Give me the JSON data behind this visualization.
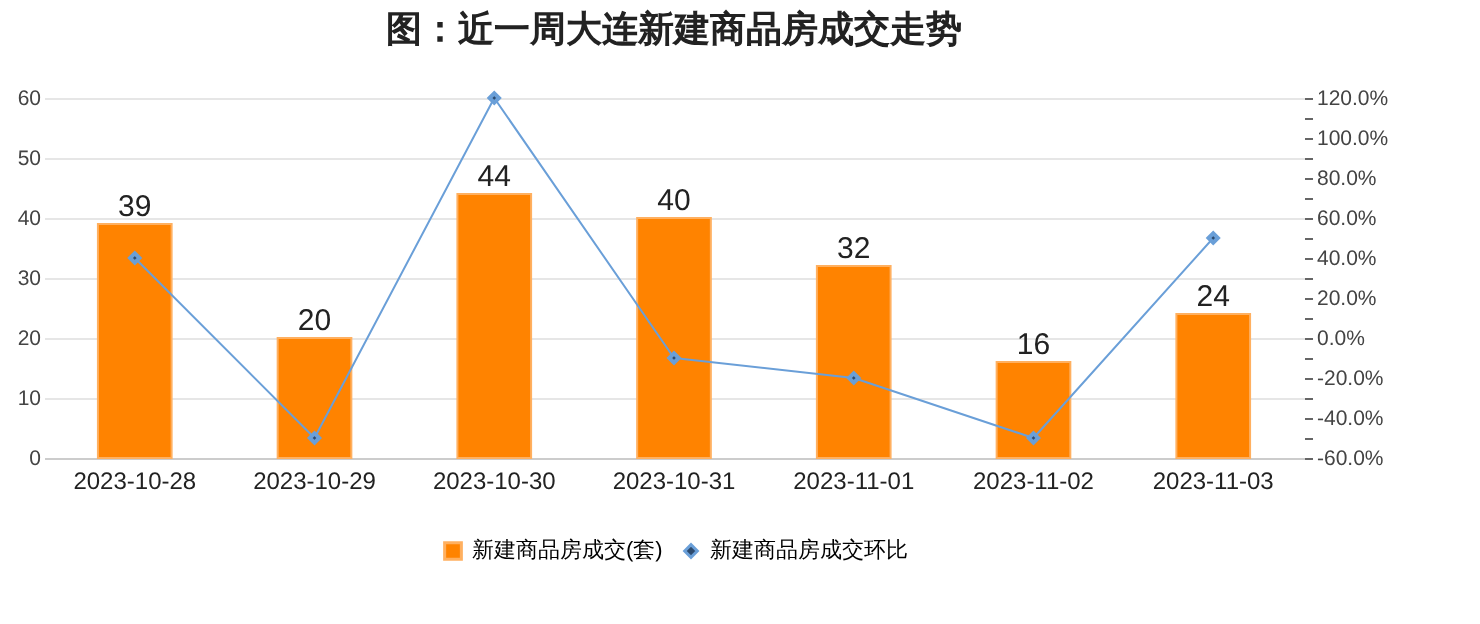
{
  "chart_data": {
    "type": "bar",
    "title": "图：近一周大连新建商品房成交走势",
    "categories": [
      "2023-10-28",
      "2023-10-29",
      "2023-10-30",
      "2023-10-31",
      "2023-11-01",
      "2023-11-02",
      "2023-11-03"
    ],
    "series": [
      {
        "name": "新建商品房成交(套)",
        "color": "#ff8300",
        "values": [
          39,
          20,
          44,
          40,
          32,
          16,
          24
        ],
        "value_labels": [
          "39",
          "20",
          "44",
          "40",
          "32",
          "16",
          "24"
        ]
      },
      {
        "name": "新建商品房成交环比",
        "type": "line",
        "axis": "y2",
        "color": "#6a9fd8",
        "values": [
          40,
          -50,
          120,
          -10,
          -20,
          -50,
          50
        ]
      }
    ],
    "ylim": [
      0,
      60
    ],
    "yticks": [
      0,
      10,
      20,
      30,
      40,
      50,
      60
    ],
    "y2lim": [
      -60,
      120
    ],
    "y2ticks": [
      {
        "value": -60,
        "label": "-60.0%"
      },
      {
        "value": -50,
        "label": null
      },
      {
        "value": -40,
        "label": "-40.0%"
      },
      {
        "value": -30,
        "label": null
      },
      {
        "value": -20,
        "label": "-20.0%"
      },
      {
        "value": -10,
        "label": null
      },
      {
        "value": 0,
        "label": "0.0%"
      },
      {
        "value": 10,
        "label": null
      },
      {
        "value": 20,
        "label": "20.0%"
      },
      {
        "value": 30,
        "label": null
      },
      {
        "value": 40,
        "label": "40.0%"
      },
      {
        "value": 50,
        "label": null
      },
      {
        "value": 60,
        "label": "60.0%"
      },
      {
        "value": 70,
        "label": null
      },
      {
        "value": 80,
        "label": "80.0%"
      },
      {
        "value": 90,
        "label": null
      },
      {
        "value": 100,
        "label": "100.0%"
      },
      {
        "value": 110,
        "label": null
      },
      {
        "value": 120,
        "label": "120.0%"
      }
    ],
    "grid": "y",
    "legend": "bottom",
    "marker": "diamond",
    "line_style": "solid"
  }
}
